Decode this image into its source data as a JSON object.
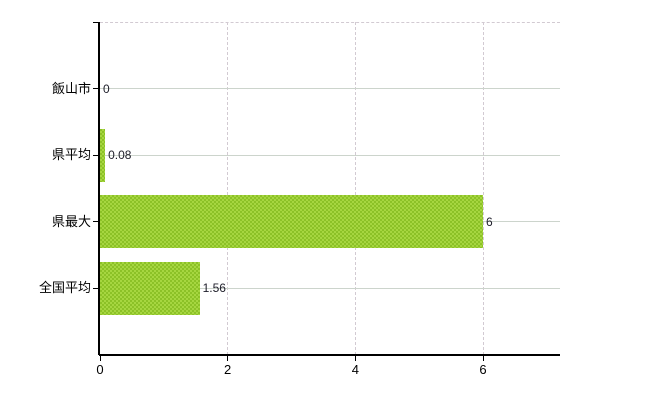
{
  "chart_data": {
    "type": "bar",
    "orientation": "horizontal",
    "title": "",
    "xlabel": "",
    "ylabel": "",
    "categories": [
      "飯山市",
      "県平均",
      "県最大",
      "全国平均"
    ],
    "values": [
      0,
      0.08,
      6,
      1.56
    ],
    "value_labels": [
      "0",
      "0.08",
      "6",
      "1.56"
    ],
    "xticks": [
      0,
      2,
      4,
      6
    ],
    "xtick_labels": [
      "0",
      "2",
      "4",
      "6"
    ],
    "xlim": [
      0,
      7.2
    ],
    "grid": true,
    "legend": false,
    "bar_fill_dithered": true
  },
  "colors": {
    "background": "#ffffff",
    "bar_base": "#9bcd31",
    "bar_dither_light": "#a6d640",
    "bar_dither_dark": "#8cc127",
    "axis": "#000000",
    "hgrid": "#ccd4cc",
    "vgrid": "#d2cad2",
    "category_label": "#000000",
    "value_label": "#20202c"
  }
}
